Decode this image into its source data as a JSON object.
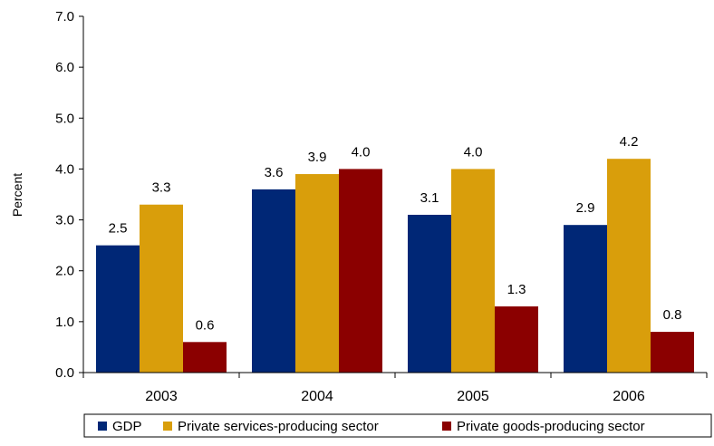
{
  "chart_data": {
    "type": "bar",
    "title": "",
    "xlabel": "",
    "ylabel": "Percent",
    "ylim": [
      0,
      7
    ],
    "yticks": [
      "0.0",
      "1.0",
      "2.0",
      "3.0",
      "4.0",
      "5.0",
      "6.0",
      "7.0"
    ],
    "grid": false,
    "legend_position": "bottom",
    "categories": [
      "2003",
      "2004",
      "2005",
      "2006"
    ],
    "series": [
      {
        "name": "GDP",
        "color": "#002776",
        "values": [
          2.5,
          3.6,
          3.1,
          2.9
        ],
        "labels": [
          "2.5",
          "3.6",
          "3.1",
          "2.9"
        ]
      },
      {
        "name": "Private services-producing sector",
        "color": "#D99E0B",
        "values": [
          3.3,
          3.9,
          4.0,
          4.2
        ],
        "labels": [
          "3.3",
          "3.9",
          "4.0",
          "4.2"
        ]
      },
      {
        "name": "Private goods-producing sector",
        "color": "#8B0000",
        "values": [
          0.6,
          4.0,
          1.3,
          0.8
        ],
        "labels": [
          "0.6",
          "4.0",
          "1.3",
          "0.8"
        ]
      }
    ]
  }
}
